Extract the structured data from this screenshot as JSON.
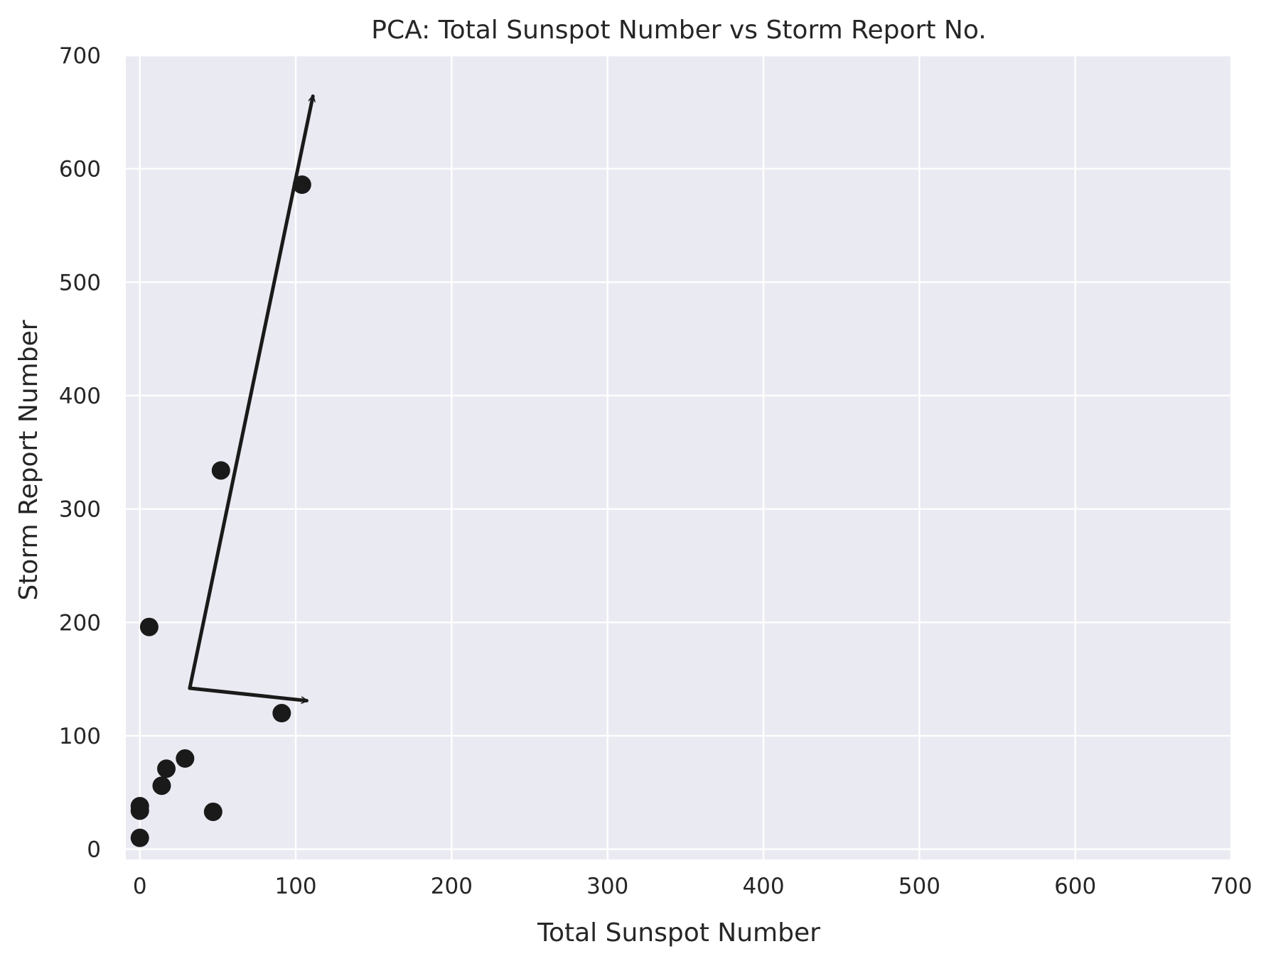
{
  "chart_data": {
    "type": "scatter",
    "title": "PCA: Total Sunspot Number vs Storm Report No.",
    "xlabel": "Total Sunspot Number",
    "ylabel": "Storm Report Number",
    "xlim": [
      -9,
      700
    ],
    "ylim": [
      -9,
      700
    ],
    "xticks": [
      0,
      100,
      200,
      300,
      400,
      500,
      600,
      700
    ],
    "yticks": [
      0,
      100,
      200,
      300,
      400,
      500,
      600,
      700
    ],
    "grid": true,
    "colors": {
      "plot_background": "#eaeaf2",
      "grid": "#ffffff",
      "marker": "#1a1a1a"
    },
    "points": [
      {
        "x": 104,
        "y": 586
      },
      {
        "x": 52,
        "y": 334
      },
      {
        "x": 6,
        "y": 196
      },
      {
        "x": 91,
        "y": 120
      },
      {
        "x": 29,
        "y": 80
      },
      {
        "x": 17,
        "y": 71
      },
      {
        "x": 14,
        "y": 56
      },
      {
        "x": 47,
        "y": 33
      },
      {
        "x": 0,
        "y": 38
      },
      {
        "x": 0,
        "y": 34
      },
      {
        "x": 0,
        "y": 10
      }
    ],
    "arrows": [
      {
        "from": [
          32,
          142
        ],
        "to": [
          111,
          664
        ]
      },
      {
        "from": [
          32,
          142
        ],
        "to": [
          107,
          131
        ]
      }
    ]
  }
}
